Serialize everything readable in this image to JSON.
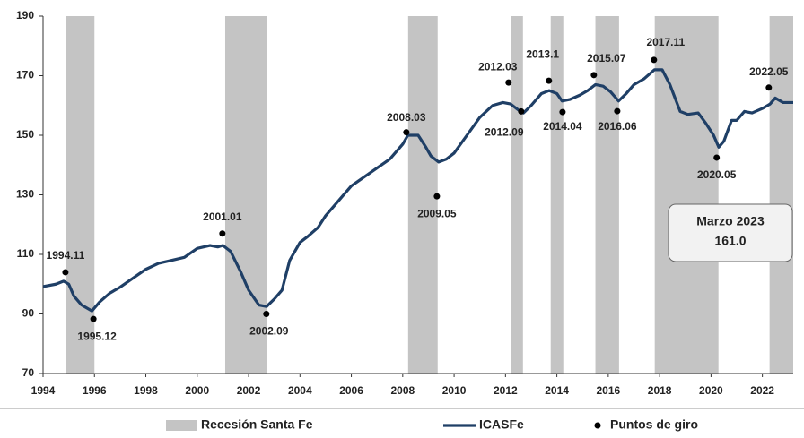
{
  "chart_data": {
    "type": "line",
    "xlim": [
      1994,
      2023.2
    ],
    "xticks": [
      1994,
      1996,
      1998,
      2000,
      2002,
      2004,
      2006,
      2008,
      2010,
      2012,
      2014,
      2016,
      2018,
      2020,
      2022
    ],
    "ylim": [
      70,
      190
    ],
    "yticks": [
      70,
      90,
      110,
      130,
      150,
      170,
      190
    ],
    "grid": false,
    "x": [
      1994.0,
      1994.5,
      1994.8,
      1995.0,
      1995.2,
      1995.5,
      1995.9,
      1996.2,
      1996.6,
      1997.0,
      1997.5,
      1998.0,
      1998.5,
      1999.0,
      1999.5,
      2000.0,
      2000.5,
      2000.8,
      2001.0,
      2001.3,
      2001.7,
      2002.0,
      2002.4,
      2002.7,
      2003.0,
      2003.3,
      2003.6,
      2004.0,
      2004.3,
      2004.7,
      2005.0,
      2005.5,
      2006.0,
      2006.5,
      2007.0,
      2007.5,
      2008.0,
      2008.2,
      2008.6,
      2008.9,
      2009.1,
      2009.4,
      2009.7,
      2010.0,
      2010.5,
      2011.0,
      2011.5,
      2011.9,
      2012.2,
      2012.5,
      2012.7,
      2013.0,
      2013.4,
      2013.7,
      2014.0,
      2014.2,
      2014.5,
      2014.9,
      2015.2,
      2015.5,
      2015.8,
      2016.1,
      2016.4,
      2016.7,
      2017.0,
      2017.4,
      2017.8,
      2018.1,
      2018.4,
      2018.8,
      2019.1,
      2019.5,
      2019.8,
      2020.1,
      2020.3,
      2020.5,
      2020.8,
      2021.0,
      2021.3,
      2021.6,
      2022.0,
      2022.3,
      2022.5,
      2022.8,
      2023.2
    ],
    "series": [
      {
        "name": "ICASFe",
        "color": "#1f3f66",
        "values": [
          99.2,
          100,
          101,
          100,
          96,
          93,
          91,
          94,
          97,
          99,
          102,
          105,
          107,
          108,
          109,
          112,
          113,
          112.5,
          113,
          111,
          104,
          98,
          93,
          92.5,
          95,
          98,
          108,
          114,
          116,
          119,
          123,
          128,
          133,
          136,
          139,
          142,
          147,
          150,
          150,
          146,
          143,
          141,
          142,
          144,
          150,
          156,
          160,
          161,
          160.5,
          158.5,
          157.5,
          160,
          164,
          165,
          164,
          161.5,
          162,
          163.5,
          165,
          167,
          166.5,
          164.5,
          161.5,
          164,
          167,
          169,
          172,
          172,
          167,
          158,
          157,
          157.5,
          154,
          150,
          146,
          148,
          155,
          155,
          158,
          157.5,
          159,
          160.5,
          162.5,
          161,
          161
        ]
      }
    ],
    "recessions": {
      "name": "Recesión Santa Fe",
      "color": "#c4c4c4",
      "ranges": [
        [
          1994.9,
          1996.0
        ],
        [
          2001.09,
          2002.73
        ],
        [
          2008.21,
          2009.36
        ],
        [
          2012.22,
          2012.68
        ],
        [
          2013.76,
          2014.25
        ],
        [
          2015.5,
          2016.42
        ],
        [
          2017.81,
          2020.29
        ],
        [
          2022.28,
          2023.2
        ]
      ]
    },
    "turning_points": {
      "name": "Puntos de giro",
      "color": "#000000",
      "labels": [
        "1994.11",
        "1995.12",
        "2001.01",
        "2002.09",
        "2008.03",
        "2009.05",
        "2012.03",
        "2012.09",
        "2013.1",
        "2014.04",
        "2015.07",
        "2016.06",
        "2017.11",
        "2020.05",
        "2022.05"
      ],
      "x": [
        1994.87,
        1995.96,
        2000.98,
        2002.69,
        2008.14,
        2009.33,
        2012.12,
        2012.61,
        2013.69,
        2014.22,
        2015.44,
        2016.35,
        2017.78,
        2020.22,
        2022.25
      ],
      "values": [
        104,
        88.3,
        117,
        90,
        151,
        129.5,
        167.7,
        158,
        168.3,
        157.8,
        170.2,
        158.1,
        175.3,
        142.5,
        166
      ]
    },
    "annotation": [
      "Marzo 2023",
      "161.0"
    ]
  }
}
